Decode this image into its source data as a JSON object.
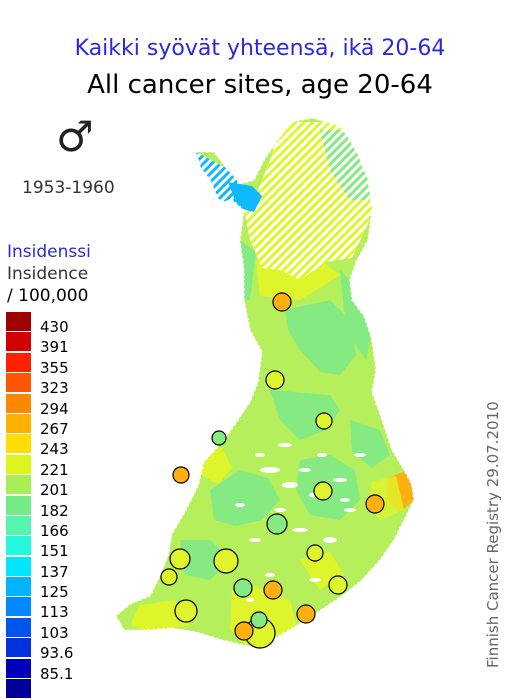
{
  "title_fi": "Kaikki syövät yhteensä, ikä 20-64",
  "title_en": "All cancer sites, age 20-64",
  "sex_symbol": "♂",
  "period": "1953-1960",
  "legend": {
    "title_fi": "Insidenssi",
    "title_en": "Insidence",
    "unit": "/ 100,000",
    "items": [
      {
        "label": "430",
        "color": "#a00000"
      },
      {
        "label": "391",
        "color": "#d40000"
      },
      {
        "label": "355",
        "color": "#ff2200"
      },
      {
        "label": "323",
        "color": "#ff5500"
      },
      {
        "label": "294",
        "color": "#ff8800"
      },
      {
        "label": "267",
        "color": "#ffb000"
      },
      {
        "label": "243",
        "color": "#ffdd00"
      },
      {
        "label": "221",
        "color": "#ddf51e"
      },
      {
        "label": "201",
        "color": "#a8ee55"
      },
      {
        "label": "182",
        "color": "#77ea88"
      },
      {
        "label": "166",
        "color": "#55f5b0"
      },
      {
        "label": "151",
        "color": "#22f8dd"
      },
      {
        "label": "137",
        "color": "#00e6ff"
      },
      {
        "label": "125",
        "color": "#00b4ff"
      },
      {
        "label": "113",
        "color": "#0088ff"
      },
      {
        "label": "103",
        "color": "#0055ee"
      },
      {
        "label": "93.6",
        "color": "#0033dd"
      },
      {
        "label": "85.1",
        "color": "#0000bb"
      },
      {
        "label": "",
        "color": "#000099"
      }
    ]
  },
  "credit": "Finnish Cancer Registry 29.07.2010",
  "map_colors": {
    "base": "#b6ef5c",
    "green": "#86ea82",
    "yellow": "#def52c",
    "orange": "#ffb010",
    "cyan": "#3ee8d8",
    "blue": "#10b8ff"
  },
  "markers": [
    {
      "level": "orange"
    },
    {
      "level": "yellow"
    },
    {
      "level": "yellow"
    },
    {
      "level": "green"
    },
    {
      "level": "orange"
    },
    {
      "level": "yellow"
    },
    {
      "level": "orange"
    },
    {
      "level": "green"
    },
    {
      "level": "yellow"
    },
    {
      "level": "yellow"
    },
    {
      "level": "yellow"
    },
    {
      "level": "yellow"
    },
    {
      "level": "green"
    },
    {
      "level": "orange"
    },
    {
      "level": "yellow"
    },
    {
      "level": "yellow"
    },
    {
      "level": "orange"
    },
    {
      "level": "yellow"
    },
    {
      "level": "green"
    },
    {
      "level": "orange"
    }
  ]
}
